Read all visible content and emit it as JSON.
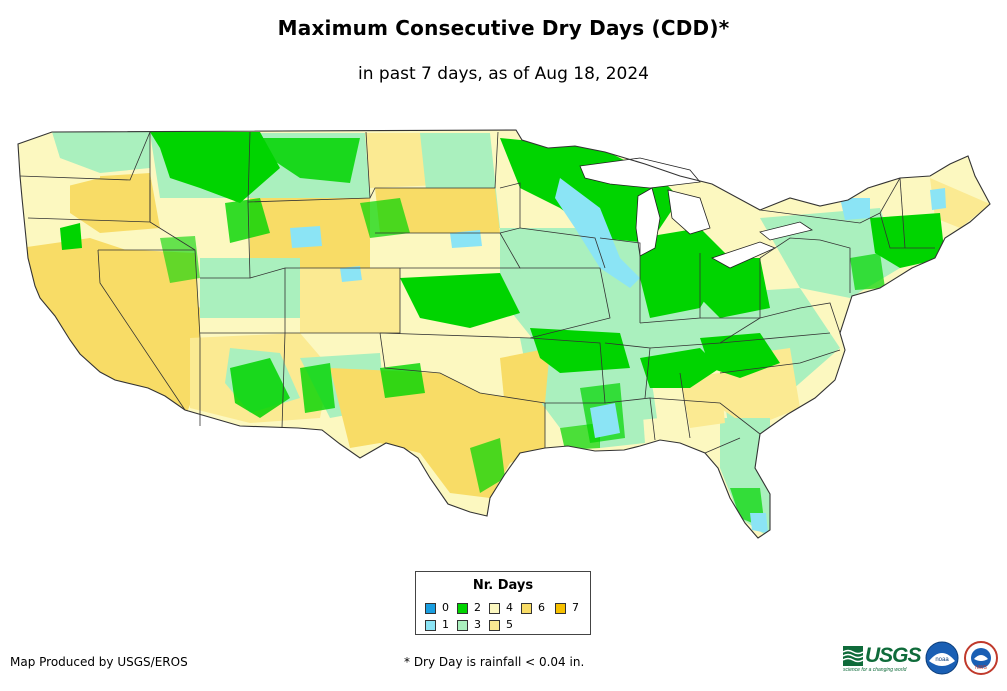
{
  "title": "Maximum Consecutive Dry Days (CDD)*",
  "subtitle": "in past 7 days, as of Aug 18, 2024",
  "legend": {
    "title": "Nr. Days",
    "items": [
      {
        "label": "0",
        "color": "#1a9ee0"
      },
      {
        "label": "1",
        "color": "#8be4f5"
      },
      {
        "label": "2",
        "color": "#00d400"
      },
      {
        "label": "3",
        "color": "#aaf0be"
      },
      {
        "label": "4",
        "color": "#fcf8c0"
      },
      {
        "label": "5",
        "color": "#fbea92"
      },
      {
        "label": "6",
        "color": "#f8dc66"
      },
      {
        "label": "7",
        "color": "#f6c000"
      }
    ]
  },
  "credit": "Map Produced by USGS/EROS",
  "footnote": "* Dry Day is rainfall < 0.04 in.",
  "logos": {
    "usgs": "USGS",
    "usgs_tagline": "science for a changing world",
    "noaa": "noaa",
    "nws": "NWS"
  },
  "icons": [
    "usgs-logo-icon",
    "noaa-logo-icon",
    "nws-logo-icon"
  ]
}
